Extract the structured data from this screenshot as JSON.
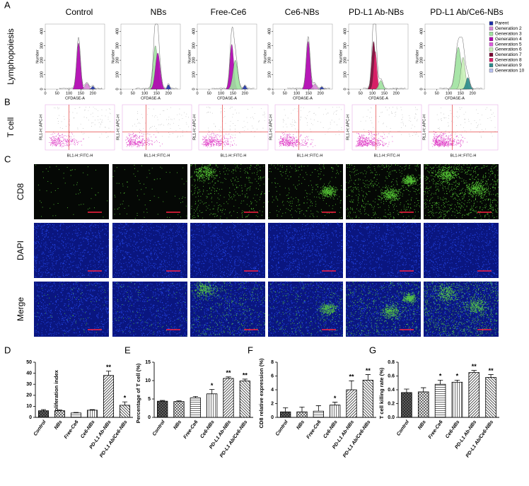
{
  "figure": {
    "panel_labels": [
      "A",
      "B",
      "C",
      "D",
      "E",
      "F",
      "G"
    ],
    "groups": [
      "Control",
      "NBs",
      "Free-Ce6",
      "Ce6-NBs",
      "PD-L1 Ab-NBs",
      "PD-L1 Ab/Ce6-NBs"
    ],
    "panel_a": {
      "row_label": "Lymphopoiesis",
      "y_label": "Number",
      "x_label": "CFDASE-A",
      "xticks": [
        0,
        50,
        100,
        150,
        200
      ],
      "yticks": [
        0,
        100,
        200,
        300,
        400
      ],
      "legend": [
        "Parent",
        "Generation 2",
        "Generation 3",
        "Generation 4",
        "Generation 5",
        "Generation 6",
        "Generation 7",
        "Generation 8",
        "Generation 9",
        "Generation 10"
      ],
      "legend_colors": [
        "#1a2ea8",
        "#d98ad9",
        "#9fe39f",
        "#b000b0",
        "#e05ce0",
        "#c8f0b8",
        "#7a0030",
        "#e0206a",
        "#2a8a8a",
        "#b8c0f0"
      ]
    },
    "panel_b": {
      "row_label": "T cell",
      "y_label": "RL1-H::APC-H",
      "x_label": "BL1-H::FITC-H"
    },
    "panel_c": {
      "row_labels": [
        "CD8",
        "DAPI",
        "Merge"
      ]
    }
  },
  "chart_data": [
    {
      "type": "bar",
      "y_label": "Proliferation index",
      "categories": [
        "Control",
        "NBs",
        "Free-Ce6",
        "Ce6-NBs",
        "PD-L1 Ab-NBs",
        "PD-L1 Ab/Ce6-NBs"
      ],
      "values": [
        6,
        6,
        4,
        6.5,
        38,
        11
      ],
      "errors": [
        1,
        0.8,
        0.5,
        0.5,
        4,
        3
      ],
      "annotations": [
        null,
        null,
        null,
        null,
        "**",
        "*"
      ],
      "ylim": [
        0,
        50
      ],
      "yticks": [
        0,
        10,
        20,
        30,
        40,
        50
      ]
    },
    {
      "type": "bar",
      "y_label": "Percentage of T cell (%)",
      "categories": [
        "Control",
        "NBs",
        "Free-Ce6",
        "Ce6-NBs",
        "PD-L1 Ab-NBs",
        "PD-L1 Ab/Ce6-NBs"
      ],
      "values": [
        4.4,
        4.3,
        5.3,
        6.4,
        10.6,
        9.9
      ],
      "errors": [
        0.2,
        0.2,
        0.4,
        1.2,
        0.4,
        0.5
      ],
      "annotations": [
        null,
        null,
        null,
        "*",
        "**",
        "**"
      ],
      "ylim": [
        0,
        15
      ],
      "yticks": [
        0,
        5,
        10,
        15
      ]
    },
    {
      "type": "bar",
      "y_label": "CD8 relative expression (%)",
      "categories": [
        "Control",
        "NBs",
        "Free-Ce6",
        "Ce6-NBs",
        "PD-L1 Ab-NBs",
        "PD-L1 Ab/Ce6-NBs"
      ],
      "values": [
        0.8,
        0.8,
        0.9,
        1.8,
        4.0,
        5.4
      ],
      "errors": [
        0.6,
        0.7,
        0.8,
        0.4,
        1.3,
        0.8
      ],
      "annotations": [
        null,
        null,
        null,
        "*",
        "**",
        "**"
      ],
      "ylim": [
        0,
        8
      ],
      "yticks": [
        0,
        2,
        4,
        6,
        8
      ]
    },
    {
      "type": "bar",
      "y_label": "T cell killing rate (%)",
      "categories": [
        "Control",
        "NBs",
        "Free-Ce6",
        "Ce6-NBs",
        "PD-L1 Ab-NBs",
        "PD-L1 Ab/Ce6-NBs"
      ],
      "values": [
        0.36,
        0.37,
        0.48,
        0.51,
        0.65,
        0.58
      ],
      "errors": [
        0.05,
        0.06,
        0.06,
        0.03,
        0.03,
        0.04
      ],
      "annotations": [
        null,
        null,
        "*",
        "*",
        "**",
        "**"
      ],
      "ylim": [
        0,
        0.8
      ],
      "yticks": [
        {
          "value": 0,
          "label": "0.0"
        },
        0.2,
        0.4,
        0.6,
        0.8
      ]
    }
  ]
}
